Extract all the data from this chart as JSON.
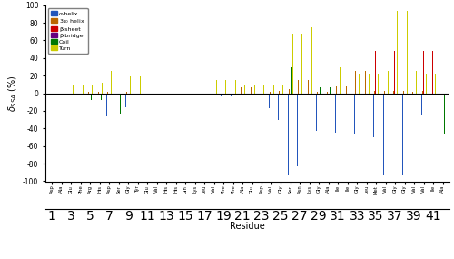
{
  "residues": [
    1,
    2,
    3,
    4,
    5,
    6,
    7,
    8,
    9,
    10,
    11,
    12,
    13,
    14,
    15,
    16,
    17,
    18,
    19,
    20,
    21,
    22,
    23,
    24,
    25,
    26,
    27,
    28,
    29,
    30,
    31,
    32,
    33,
    34,
    35,
    36,
    37,
    38,
    39,
    40,
    41,
    42
  ],
  "labels": [
    "Asp",
    "Ala",
    "Glu",
    "Phe",
    "Arg",
    "His",
    "Asp",
    "Ser",
    "Gly",
    "Tyr",
    "Glu",
    "Val",
    "His",
    "His",
    "Gln",
    "Lys",
    "Leu",
    "Val",
    "Phe",
    "Phe",
    "Ala",
    "Glu",
    "Asp",
    "Val",
    "Gly",
    "Ser",
    "Asn",
    "Lys",
    "Gly",
    "Ala",
    "Ile",
    "Ile",
    "Gly",
    "Leu",
    "Met",
    "Val",
    "Gly",
    "Gly",
    "Val",
    "Val",
    "Ile",
    "Ala"
  ],
  "alpha_helix": [
    0,
    0,
    0,
    0,
    0,
    0,
    -26,
    0,
    -16,
    0,
    0,
    0,
    0,
    0,
    0,
    0,
    0,
    0,
    -3,
    -3,
    0,
    0,
    0,
    -17,
    -30,
    -93,
    -83,
    0,
    -43,
    0,
    -45,
    0,
    -47,
    0,
    -50,
    -93,
    0,
    -93,
    0,
    -25,
    0,
    0
  ],
  "helix310": [
    0,
    0,
    0,
    0,
    2,
    2,
    2,
    0,
    2,
    0,
    0,
    0,
    0,
    0,
    0,
    0,
    0,
    0,
    0,
    0,
    7,
    7,
    0,
    2,
    3,
    5,
    15,
    15,
    2,
    2,
    8,
    8,
    25,
    25,
    3,
    3,
    3,
    3,
    2,
    3,
    0,
    0
  ],
  "beta_sheet": [
    0,
    0,
    0,
    0,
    0,
    0,
    0,
    0,
    0,
    0,
    0,
    0,
    0,
    0,
    0,
    0,
    0,
    0,
    0,
    0,
    0,
    0,
    0,
    0,
    0,
    0,
    0,
    0,
    0,
    0,
    0,
    0,
    0,
    0,
    48,
    0,
    48,
    0,
    0,
    48,
    48,
    0
  ],
  "beta_bridge": [
    0,
    0,
    0,
    0,
    0,
    0,
    0,
    0,
    0,
    0,
    0,
    0,
    0,
    0,
    0,
    0,
    0,
    0,
    0,
    0,
    0,
    0,
    0,
    0,
    0,
    0,
    0,
    0,
    0,
    0,
    0,
    0,
    0,
    0,
    0,
    0,
    0,
    0,
    0,
    0,
    0,
    0
  ],
  "coil": [
    0,
    0,
    0,
    0,
    -8,
    -8,
    0,
    -23,
    0,
    0,
    0,
    0,
    0,
    0,
    0,
    0,
    0,
    0,
    0,
    0,
    0,
    0,
    0,
    0,
    0,
    30,
    22,
    0,
    7,
    7,
    0,
    0,
    0,
    0,
    0,
    0,
    0,
    0,
    0,
    0,
    0,
    -47
  ],
  "turn": [
    0,
    0,
    10,
    10,
    10,
    12,
    25,
    0,
    19,
    19,
    0,
    0,
    0,
    0,
    0,
    0,
    0,
    15,
    15,
    15,
    10,
    10,
    10,
    10,
    10,
    68,
    68,
    75,
    75,
    30,
    30,
    30,
    22,
    22,
    22,
    25,
    93,
    93,
    25,
    22,
    22,
    0
  ],
  "colors": {
    "alpha_helix": "#2255bb",
    "helix310": "#bb6600",
    "beta_sheet": "#cc0000",
    "beta_bridge": "#660080",
    "coil": "#007700",
    "turn": "#cccc00"
  },
  "ylabel": "$\\delta_{SSA}$ (%)",
  "xlabel": "Residue",
  "ylim": [
    -100,
    100
  ],
  "yticks": [
    -100,
    -80,
    -60,
    -40,
    -20,
    0,
    20,
    40,
    60,
    80,
    100
  ],
  "bar_width": 0.1,
  "num_ticks": [
    1,
    3,
    5,
    7,
    9,
    11,
    13,
    15,
    17,
    19,
    21,
    23,
    25,
    27,
    29,
    31,
    33,
    35,
    37,
    39,
    41
  ],
  "legend_labels": [
    "α-helix",
    "3$_{10}$ helix",
    "β-sheet",
    "β-bridge",
    "Coil",
    "Turn"
  ]
}
